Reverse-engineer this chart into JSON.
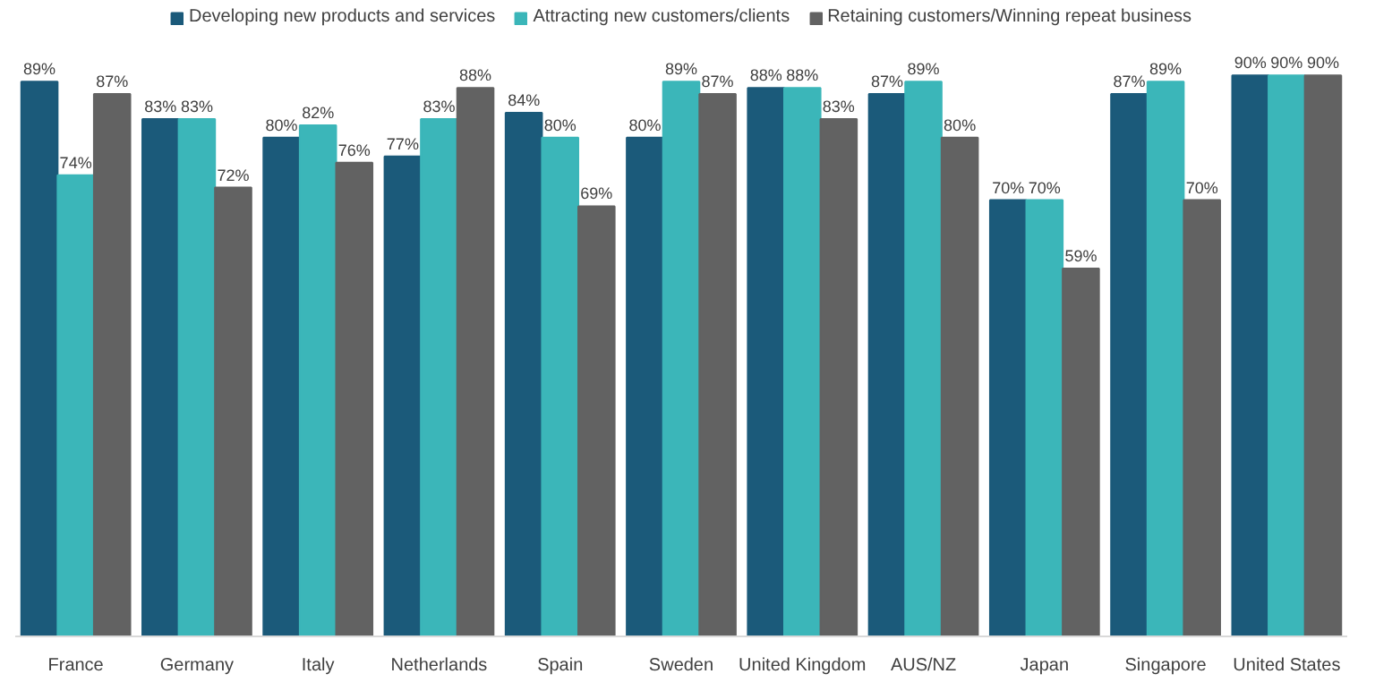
{
  "chart_data": {
    "type": "bar",
    "categories": [
      "France",
      "Germany",
      "Italy",
      "Netherlands",
      "Spain",
      "Sweden",
      "United Kingdom",
      "AUS/NZ",
      "Japan",
      "Singapore",
      "United States"
    ],
    "series": [
      {
        "name": "Developing new products and services",
        "color": "#1b5a7a",
        "values": [
          89,
          83,
          80,
          77,
          84,
          80,
          88,
          87,
          70,
          87,
          90
        ],
        "value_labels": [
          "89%",
          "83%",
          "80%",
          "77%",
          "84%",
          "80%",
          "88%",
          "87%",
          "70%",
          "87%",
          "90%"
        ]
      },
      {
        "name": "Attracting new customers/clients",
        "color": "#3bb6b9",
        "values": [
          74,
          83,
          82,
          83,
          80,
          89,
          88,
          89,
          70,
          89,
          90
        ],
        "value_labels": [
          "74%",
          "83%",
          "82%",
          "83%",
          "80%",
          "89%",
          "88%",
          "89%",
          "70%",
          "89%",
          "90%"
        ]
      },
      {
        "name": "Retaining customers/Winning repeat business",
        "color": "#626262",
        "values": [
          87,
          72,
          76,
          88,
          69,
          87,
          83,
          80,
          59,
          70,
          90
        ],
        "value_labels": [
          "87%",
          "72%",
          "76%",
          "88%",
          "69%",
          "87%",
          "83%",
          "80%",
          "59%",
          "70%",
          "90%"
        ]
      }
    ],
    "tick_labels": "x",
    "legend": "top"
  }
}
